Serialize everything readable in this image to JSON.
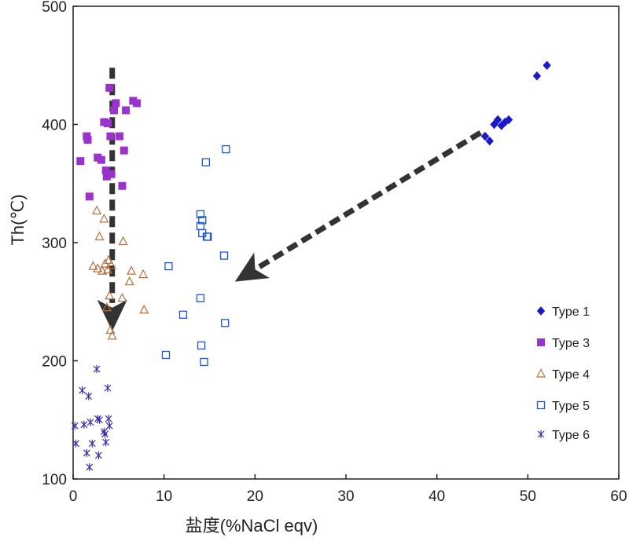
{
  "chart_data": {
    "type": "scatter",
    "title": "",
    "xlabel": "盐度(%NaCl eqv)",
    "ylabel": "Th(℃)",
    "xlim": [
      0,
      60
    ],
    "ylim": [
      100,
      500
    ],
    "xticks": [
      0,
      10,
      20,
      30,
      40,
      50,
      60
    ],
    "yticks": [
      100,
      200,
      300,
      400,
      500
    ],
    "xtick_labels": [
      "0",
      "10",
      "20",
      "30",
      "40",
      "50",
      "60"
    ],
    "ytick_labels": [
      "100",
      "200",
      "300",
      "400",
      "500"
    ],
    "grid": false,
    "legend_position": "right",
    "series": [
      {
        "name": "Type 1",
        "marker": "diamond",
        "color": "#1a1acc",
        "x": [
          45.3,
          45.8,
          46.3,
          46.7,
          47.1,
          47.5,
          47.9,
          51.0,
          52.1
        ],
        "y": [
          390,
          386,
          400,
          404,
          399,
          402,
          404,
          441,
          450
        ]
      },
      {
        "name": "Type 3",
        "marker": "square-filled",
        "color": "#9933cc",
        "x": [
          0.8,
          1.5,
          1.6,
          1.8,
          2.7,
          3.1,
          3.4,
          3.6,
          3.7,
          3.8,
          4.0,
          4.1,
          4.2,
          4.5,
          4.7,
          5.1,
          5.4,
          5.6,
          5.8,
          6.6,
          7.0
        ],
        "y": [
          369,
          390,
          387,
          339,
          372,
          370,
          402,
          361,
          356,
          401,
          431,
          390,
          358,
          412,
          418,
          390,
          348,
          378,
          412,
          420,
          418
        ]
      },
      {
        "name": "Type 4",
        "marker": "triangle-open",
        "color": "#b8703a",
        "x": [
          2.2,
          2.6,
          2.7,
          2.9,
          3.2,
          3.4,
          3.5,
          3.7,
          3.8,
          3.9,
          4.0,
          4.1,
          4.2,
          4.3,
          5.4,
          5.5,
          6.2,
          6.4,
          7.7,
          7.8
        ],
        "y": [
          280,
          327,
          278,
          305,
          276,
          320,
          282,
          245,
          277,
          285,
          255,
          226,
          281,
          221,
          253,
          301,
          267,
          276,
          273,
          243
        ]
      },
      {
        "name": "Type 5",
        "marker": "square-open",
        "color": "#1a55dd",
        "x": [
          10.2,
          10.5,
          12.1,
          14.0,
          14.0,
          14.0,
          14.1,
          14.2,
          14.2,
          14.4,
          14.6,
          14.7,
          14.8,
          16.6,
          16.7,
          16.8
        ],
        "y": [
          205,
          280,
          239,
          324,
          314,
          253,
          213,
          308,
          319,
          199,
          368,
          305,
          305,
          289,
          232,
          379
        ]
      },
      {
        "name": "Type 6",
        "marker": "asterisk",
        "color": "#3a2aa8",
        "x": [
          0.2,
          0.3,
          1.0,
          1.2,
          1.5,
          1.7,
          1.8,
          1.9,
          2.1,
          2.6,
          2.7,
          2.8,
          2.9,
          3.4,
          3.5,
          3.6,
          3.8,
          3.9,
          4.0
        ],
        "y": [
          145,
          130,
          175,
          146,
          122,
          170,
          110,
          148,
          130,
          193,
          151,
          120,
          150,
          140,
          138,
          131,
          177,
          151,
          145
        ]
      }
    ],
    "annotations": [
      {
        "type": "arrow",
        "style": "dashed",
        "from": [
          4.3,
          448
        ],
        "to": [
          4.3,
          225
        ]
      },
      {
        "type": "arrow",
        "style": "dashed",
        "from": [
          44.8,
          393
        ],
        "to": [
          17.8,
          267
        ]
      }
    ]
  }
}
